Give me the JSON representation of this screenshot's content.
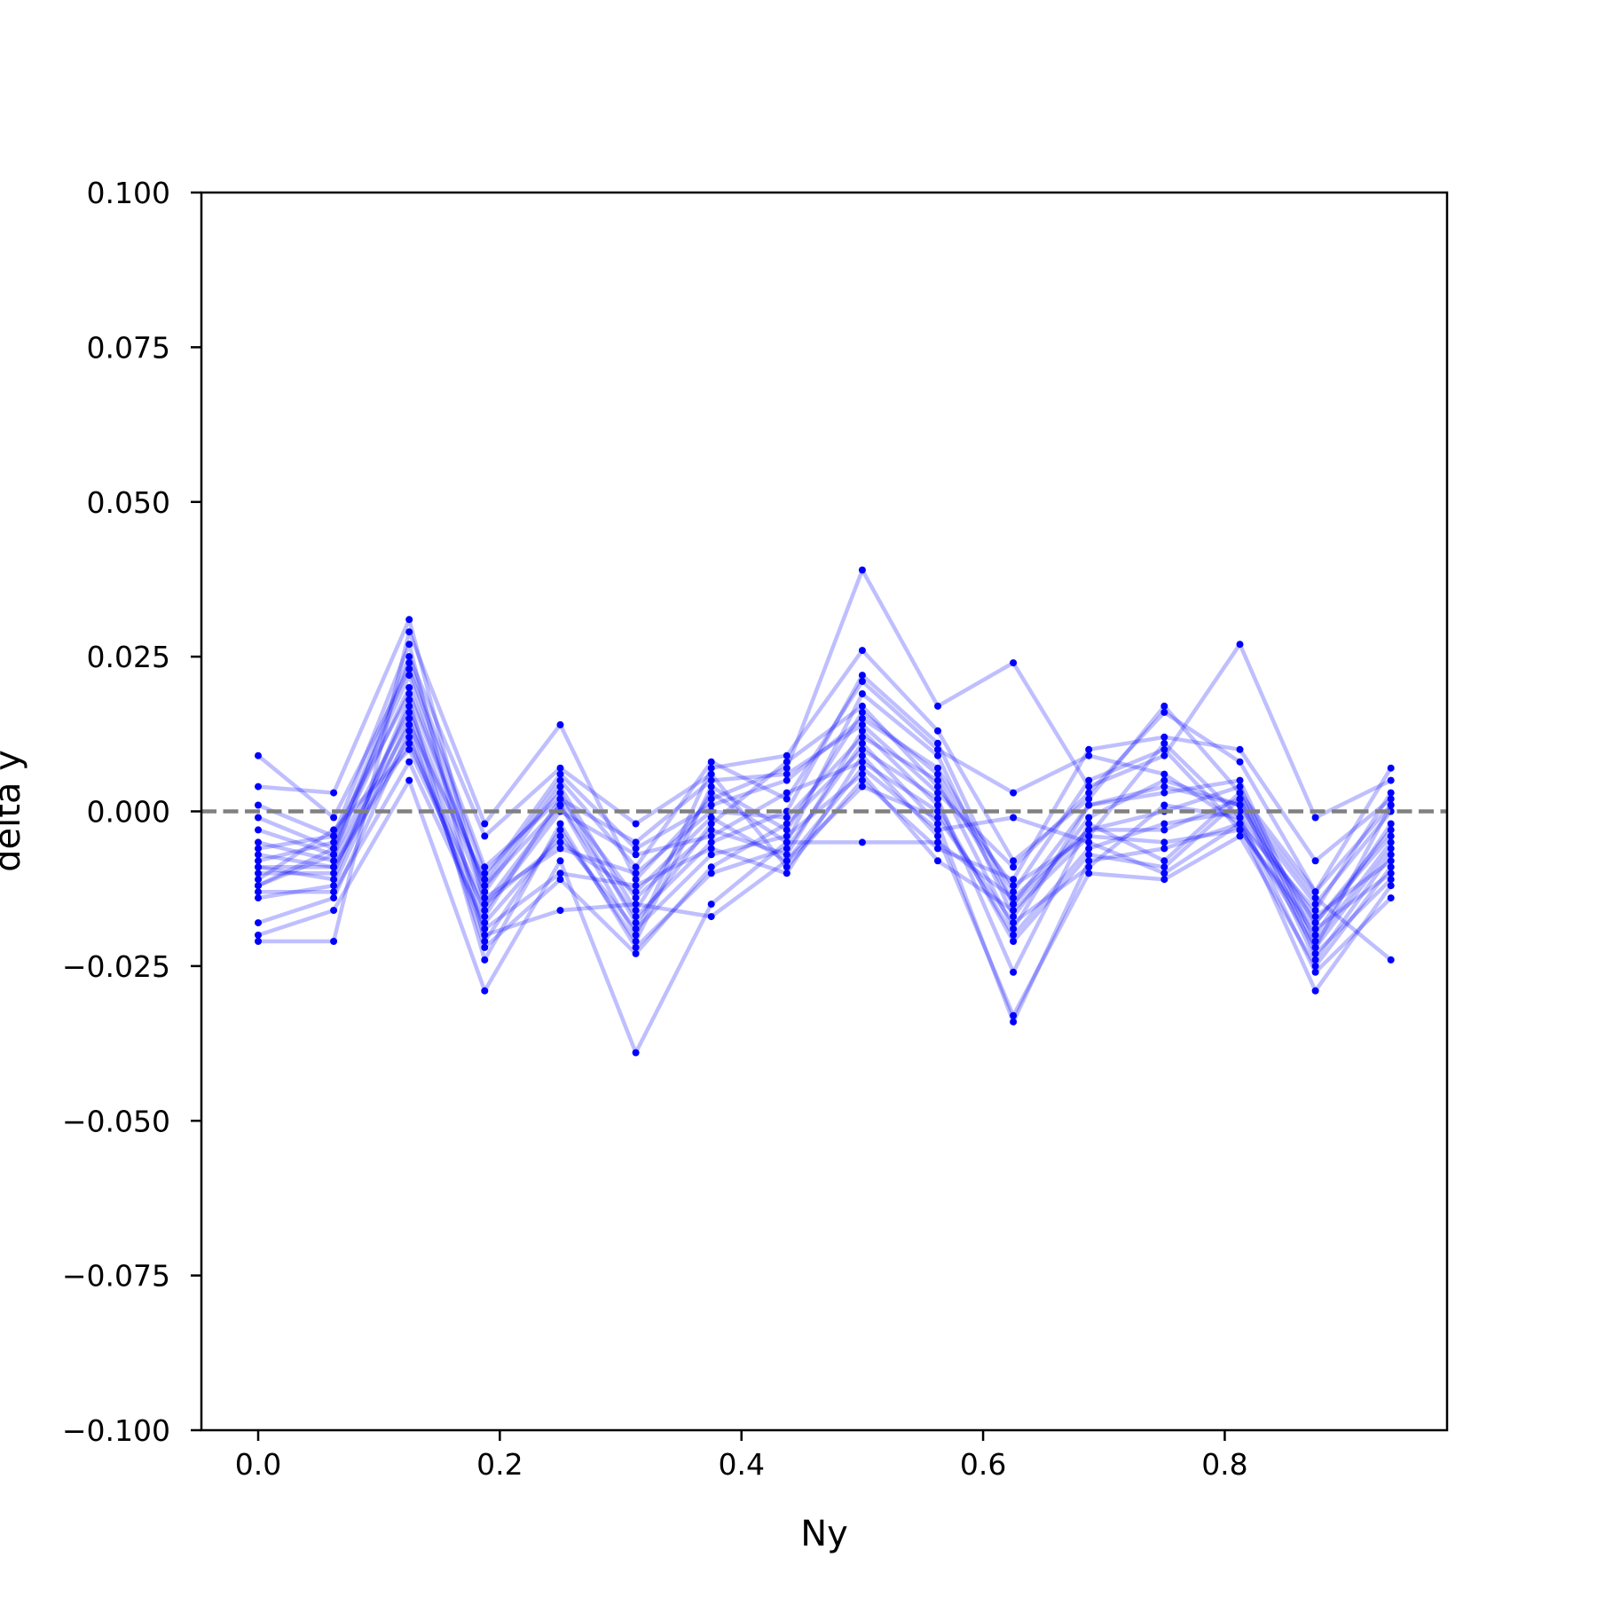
{
  "chart_data": {
    "type": "line",
    "xlabel": "Ny",
    "ylabel": "delta y",
    "xlim": [
      -0.047,
      0.984
    ],
    "ylim": [
      -0.1,
      0.1
    ],
    "x": [
      0.0,
      0.0625,
      0.125,
      0.1875,
      0.25,
      0.3125,
      0.375,
      0.4375,
      0.5,
      0.5625,
      0.625,
      0.6875,
      0.75,
      0.8125,
      0.875,
      0.9375
    ],
    "xticks": [
      0.0,
      0.2,
      0.4,
      0.6,
      0.8
    ],
    "xtick_labels": [
      "0.0",
      "0.2",
      "0.4",
      "0.6",
      "0.8"
    ],
    "yticks": [
      0.1,
      0.075,
      0.05,
      0.025,
      0.0,
      -0.025,
      -0.05,
      -0.075,
      -0.1
    ],
    "ytick_labels": [
      "0.100",
      "0.075",
      "0.050",
      "0.025",
      "0.000",
      "−0.025",
      "−0.050",
      "−0.075",
      "−0.100"
    ],
    "reference_line": {
      "y": 0.0,
      "style": "dashed",
      "color": "#808080"
    },
    "series_color": "#0000ff",
    "grid": false,
    "legend": "none",
    "series": [
      {
        "values": [
          0.009,
          -0.001,
          0.023,
          -0.01,
          0.003,
          -0.018,
          -0.002,
          0.008,
          0.017,
          0.004,
          -0.012,
          -0.004,
          0.011,
          -0.001,
          -0.018,
          -0.004
        ]
      },
      {
        "values": [
          0.004,
          0.003,
          0.031,
          -0.015,
          0.001,
          -0.02,
          0.007,
          0.009,
          0.026,
          0.013,
          -0.008,
          0.002,
          0.017,
          0.003,
          -0.013,
          0.007
        ]
      },
      {
        "values": [
          0.001,
          -0.004,
          0.027,
          -0.021,
          -0.003,
          -0.021,
          0.004,
          -0.003,
          0.016,
          0.006,
          -0.015,
          -0.003,
          0.0,
          0.004,
          -0.022,
          0.001
        ]
      },
      {
        "values": [
          -0.001,
          -0.006,
          0.02,
          -0.012,
          0.005,
          -0.009,
          0.008,
          0.002,
          0.021,
          0.01,
          0.003,
          0.009,
          0.006,
          -0.002,
          -0.016,
          0.003
        ]
      },
      {
        "values": [
          -0.003,
          -0.007,
          0.016,
          -0.017,
          0.002,
          -0.014,
          -0.003,
          -0.007,
          0.013,
          0.001,
          -0.021,
          -0.007,
          -0.009,
          0.002,
          -0.024,
          -0.007
        ]
      },
      {
        "values": [
          -0.005,
          -0.008,
          0.014,
          -0.011,
          0.006,
          -0.006,
          0.001,
          0.005,
          0.015,
          0.007,
          -0.013,
          0.005,
          0.01,
          -0.003,
          -0.02,
          -0.002
        ]
      },
      {
        "values": [
          -0.007,
          -0.009,
          0.012,
          -0.019,
          -0.01,
          -0.012,
          -0.006,
          -0.01,
          0.009,
          -0.004,
          -0.033,
          -0.01,
          -0.011,
          -0.004,
          -0.025,
          -0.009
        ]
      },
      {
        "values": [
          -0.008,
          -0.005,
          0.022,
          -0.013,
          0.004,
          -0.016,
          0.003,
          -0.005,
          0.019,
          0.009,
          -0.017,
          -0.001,
          0.005,
          0.001,
          -0.015,
          0.0
        ]
      },
      {
        "values": [
          -0.009,
          -0.011,
          0.018,
          -0.024,
          -0.002,
          -0.022,
          -0.01,
          -0.006,
          0.011,
          -0.002,
          -0.034,
          -0.008,
          -0.006,
          -0.002,
          -0.029,
          -0.012
        ]
      },
      {
        "values": [
          -0.01,
          -0.01,
          0.017,
          -0.014,
          -0.006,
          -0.01,
          0.0,
          -0.001,
          0.012,
          0.005,
          -0.019,
          0.001,
          0.003,
          0.005,
          -0.021,
          -0.005
        ]
      },
      {
        "values": [
          -0.011,
          -0.003,
          0.01,
          -0.016,
          0.0,
          -0.007,
          -0.004,
          0.003,
          0.008,
          0.0,
          -0.02,
          -0.006,
          -0.002,
          0.0,
          -0.017,
          -0.008
        ]
      },
      {
        "values": [
          -0.012,
          -0.006,
          0.025,
          -0.004,
          0.007,
          -0.002,
          0.006,
          -0.009,
          0.005,
          -0.006,
          -0.011,
          0.01,
          0.012,
          0.01,
          -0.008,
          0.002
        ]
      },
      {
        "values": [
          -0.013,
          -0.013,
          0.008,
          -0.018,
          -0.004,
          -0.019,
          -0.007,
          -0.004,
          0.006,
          -0.008,
          -0.016,
          -0.004,
          -0.005,
          -0.003,
          -0.019,
          -0.01
        ]
      },
      {
        "values": [
          -0.014,
          -0.012,
          0.015,
          -0.022,
          -0.011,
          -0.023,
          -0.009,
          -0.002,
          0.01,
          0.002,
          -0.026,
          -0.002,
          -0.008,
          0.003,
          -0.023,
          -0.011
        ]
      },
      {
        "values": [
          -0.018,
          -0.014,
          0.013,
          -0.02,
          -0.016,
          -0.015,
          -0.017,
          -0.008,
          0.004,
          -0.001,
          -0.018,
          -0.009,
          0.001,
          -0.001,
          -0.026,
          -0.014
        ]
      },
      {
        "values": [
          -0.02,
          -0.016,
          0.005,
          -0.029,
          -0.008,
          -0.039,
          -0.015,
          -0.005,
          -0.005,
          -0.005,
          -0.014,
          -0.003,
          -0.003,
          0.002,
          -0.014,
          -0.024
        ]
      },
      {
        "values": [
          -0.021,
          -0.021,
          0.029,
          -0.002,
          0.014,
          -0.011,
          0.002,
          0.007,
          0.039,
          0.017,
          0.024,
          0.004,
          0.009,
          0.027,
          -0.001,
          0.005
        ]
      },
      {
        "values": [
          -0.012,
          -0.007,
          0.024,
          -0.009,
          0.002,
          -0.005,
          0.005,
          0.006,
          0.014,
          0.003,
          -0.009,
          0.003,
          0.016,
          0.008,
          -0.013,
          0.001
        ]
      },
      {
        "values": [
          -0.009,
          -0.009,
          0.011,
          -0.015,
          -0.005,
          -0.013,
          -0.001,
          -0.008,
          0.007,
          -0.003,
          -0.001,
          -0.005,
          -0.01,
          -0.002,
          -0.022,
          -0.006
        ]
      },
      {
        "values": [
          -0.006,
          -0.004,
          0.019,
          -0.012,
          0.001,
          -0.017,
          -0.005,
          0.0,
          0.022,
          0.011,
          -0.015,
          0.001,
          0.004,
          0.001,
          -0.018,
          -0.003
        ]
      }
    ]
  }
}
